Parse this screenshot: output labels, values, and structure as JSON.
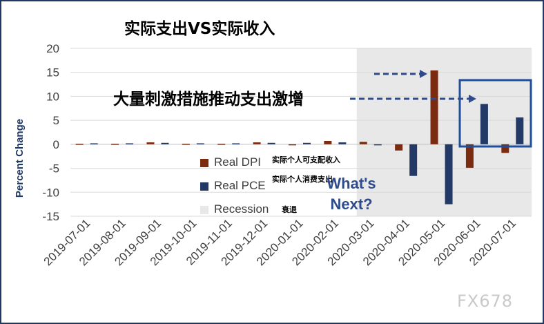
{
  "title": "实际支出VS实际收入",
  "annotation": "大量刺激措施推动支出激增",
  "whats_next": [
    "What's",
    "Next?"
  ],
  "watermark": "FX678",
  "legend": [
    {
      "label": "Real DPI",
      "note": "实际个人可支配收入",
      "color": "#7b2c10"
    },
    {
      "label": "Real PCE",
      "note": "实际个人消费支出",
      "color": "#243a66"
    },
    {
      "label": "Recession",
      "note": "衰退",
      "color": "#e8e8e8"
    }
  ],
  "chart_data": {
    "type": "bar",
    "title": "实际支出VS实际收入",
    "ylabel": "Percent Change",
    "xlabel": "",
    "ylim": [
      -15,
      20
    ],
    "yticks": [
      20,
      15,
      10,
      5,
      0,
      -5,
      -10,
      -15
    ],
    "grid": true,
    "legend_position": "center-left",
    "categories": [
      "2019-07-01",
      "2019-08-01",
      "2019-09-01",
      "2019-10-01",
      "2019-11-01",
      "2019-12-01",
      "2020-01-01",
      "2020-02-01",
      "2020-03-01",
      "2020-04-01",
      "2020-05-01",
      "2020-06-01",
      "2020-07-01"
    ],
    "series": [
      {
        "name": "Real DPI",
        "color": "#7b2c10",
        "values": [
          0.1,
          0.1,
          0.4,
          0.1,
          0.1,
          0.4,
          -0.2,
          0.7,
          0.5,
          -1.3,
          15.4,
          -4.9,
          -1.8
        ]
      },
      {
        "name": "Real PCE",
        "color": "#243a66",
        "values": [
          0.2,
          0.2,
          0.3,
          0.2,
          0.2,
          0.3,
          0.3,
          0.4,
          -0.2,
          -6.6,
          -12.5,
          8.4,
          5.6
        ]
      }
    ],
    "recession": {
      "start": "2020-03-01",
      "end": "2020-07-01",
      "color": "#e8e8e8"
    }
  }
}
